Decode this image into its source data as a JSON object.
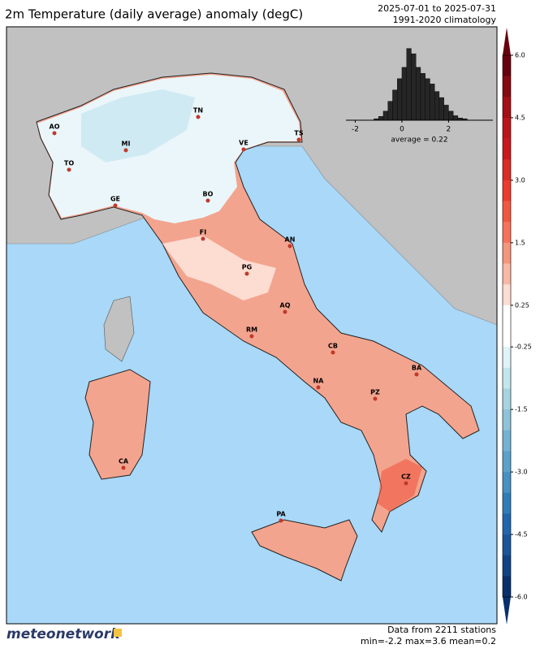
{
  "title": "2m Temperature (daily average) anomaly (degC)",
  "period": "2025-07-01 to 2025-07-31",
  "climatology": "1991-2020 climatology",
  "histogram": {
    "type": "histogram",
    "bins": [
      -1.2,
      -1.0,
      -0.8,
      -0.6,
      -0.4,
      -0.2,
      0.0,
      0.2,
      0.4,
      0.6,
      0.8,
      1.0,
      1.2,
      1.4,
      1.6,
      1.8,
      2.0,
      2.2,
      2.4,
      2.6,
      2.8
    ],
    "counts": [
      2,
      5,
      12,
      25,
      40,
      55,
      70,
      95,
      88,
      70,
      62,
      55,
      48,
      38,
      30,
      20,
      12,
      6,
      3,
      2
    ],
    "color": "#262626",
    "xlim": [
      -2.4,
      3.9
    ],
    "xticks": [
      -2,
      0,
      2
    ],
    "ylim": [
      0,
      100
    ],
    "annotation": "average = 0.22"
  },
  "colorbar": {
    "boundaries": [
      6,
      5.5,
      5,
      4.5,
      4,
      3.5,
      3,
      2.5,
      2,
      1.5,
      1,
      0.5,
      0.25,
      0,
      -0.25,
      -0.5,
      -1,
      -1.5,
      -2,
      -2.5,
      -3,
      -3.5,
      -4,
      -4.5,
      -5,
      -5.5,
      -6
    ],
    "colors": [
      "#67000d",
      "#850a12",
      "#a50f15",
      "#bb151a",
      "#cb181d",
      "#dc2a25",
      "#ef3b2c",
      "#f2583f",
      "#f6735a",
      "#f4957c",
      "#f9b8a5",
      "#fddcd2",
      "#ffffff",
      "#ffffff",
      "#e0f3f8",
      "#c3e6ee",
      "#a6d3df",
      "#8fc3d8",
      "#73b2d3",
      "#5aa1cb",
      "#4690c3",
      "#2f7db8",
      "#2166ac",
      "#1a569a",
      "#104385",
      "#08306b"
    ],
    "ticks": [
      {
        "value": 6,
        "label": "6.0"
      },
      4.5,
      {
        "value": 3,
        "label": "3.0"
      },
      1.5,
      0.25,
      -0.25,
      -1.5,
      {
        "value": -3,
        "label": "-3.0"
      },
      -4.5,
      {
        "value": -6,
        "label": "-6.0"
      }
    ]
  },
  "cities": [
    "AO",
    "TO",
    "MI",
    "TN",
    "VE",
    "TS",
    "GE",
    "BO",
    "FI",
    "AN",
    "PG",
    "AQ",
    "RM",
    "CB",
    "NA",
    "BA",
    "PZ",
    "CZ",
    "CA",
    "PA"
  ],
  "footer": {
    "logo": "meteonetwork",
    "stations": "Data from 2211 stations",
    "stats": "min=-2.2 max=3.6 mean=0.2"
  }
}
